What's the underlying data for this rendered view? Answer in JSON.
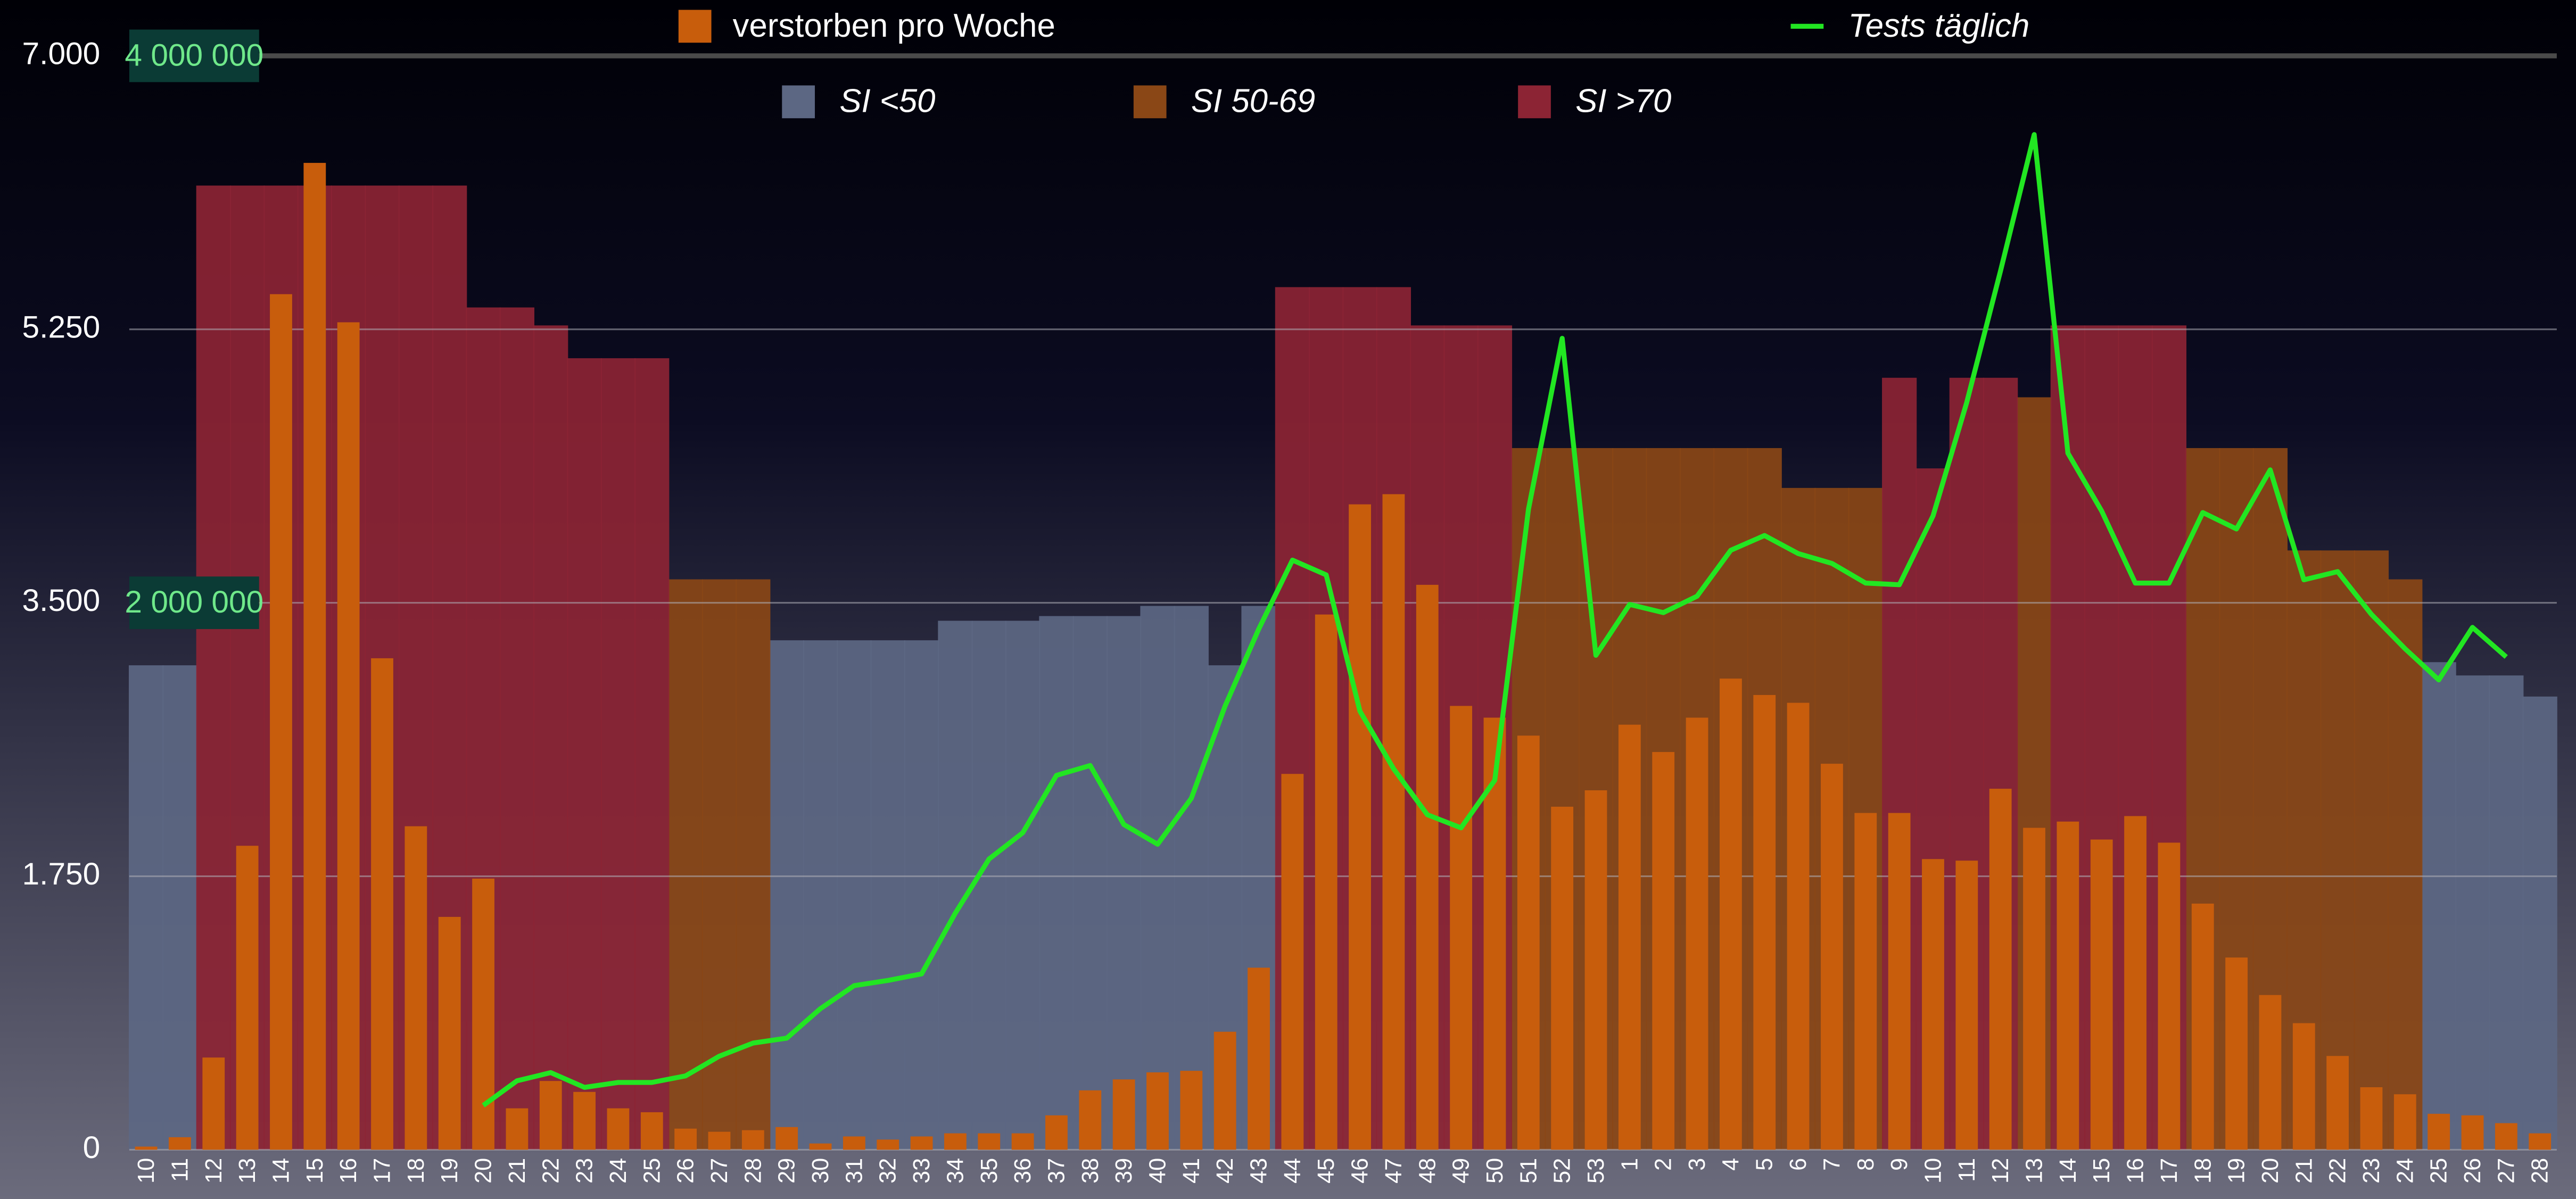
{
  "chart_data": {
    "type": "bar",
    "categories": [
      "10",
      "11",
      "12",
      "13",
      "14",
      "15",
      "16",
      "17",
      "18",
      "19",
      "20",
      "21",
      "22",
      "23",
      "24",
      "25",
      "26",
      "27",
      "28",
      "29",
      "30",
      "31",
      "32",
      "33",
      "34",
      "35",
      "36",
      "37",
      "38",
      "39",
      "40",
      "41",
      "42",
      "43",
      "44",
      "45",
      "46",
      "47",
      "48",
      "49",
      "50",
      "51",
      "52",
      "53",
      "1",
      "2",
      "3",
      "4",
      "5",
      "6",
      "7",
      "8",
      "9",
      "10",
      "11",
      "12",
      "13",
      "14",
      "15",
      "16",
      "17",
      "18",
      "19",
      "20",
      "21",
      "22",
      "23",
      "24",
      "25",
      "26",
      "27",
      "28"
    ],
    "ylim": [
      0,
      7000
    ],
    "yticks": [
      0,
      {
        "value": 1750,
        "label": "1.750"
      },
      {
        "value": 3500,
        "label": "3.500"
      },
      {
        "value": 5250,
        "label": "5.250"
      },
      {
        "value": 7000,
        "label": "7.000"
      }
    ],
    "y2lim": [
      0,
      4000000
    ],
    "y2ticks": [
      {
        "value": 2000000,
        "label": "2 000 000"
      },
      {
        "value": 4000000,
        "label": "4 000 000"
      }
    ],
    "grid": true,
    "legend": "top",
    "series": [
      {
        "name": "verstorben pro Woche",
        "type": "bar",
        "color": "#c85d0c",
        "values": [
          20,
          80,
          590,
          1945,
          5475,
          6315,
          5295,
          3145,
          2070,
          1490,
          1735,
          265,
          440,
          370,
          265,
          240,
          135,
          115,
          125,
          145,
          40,
          85,
          65,
          85,
          105,
          105,
          105,
          220,
          380,
          450,
          495,
          505,
          755,
          1165,
          2405,
          3425,
          4130,
          4195,
          3615,
          2840,
          2765,
          2650,
          2195,
          2300,
          2720,
          2545,
          2765,
          3015,
          2910,
          2860,
          2470,
          2155,
          2155,
          1860,
          1850,
          2310,
          2060,
          2100,
          1985,
          2135,
          1965,
          1575,
          1230,
          990,
          810,
          600,
          400,
          355,
          230,
          220,
          170,
          105
        ]
      },
      {
        "name": "Tests täglich",
        "type": "line",
        "axis": "y2",
        "color": "#22e622",
        "values": [
          null,
          null,
          null,
          null,
          null,
          null,
          null,
          null,
          null,
          null,
          162000,
          252000,
          282000,
          228000,
          246000,
          246000,
          270000,
          342000,
          390000,
          408000,
          516000,
          600000,
          619000,
          643000,
          865000,
          1063000,
          1159000,
          1369000,
          1405000,
          1189000,
          1117000,
          1285000,
          1622000,
          1904000,
          2156000,
          2102000,
          1604000,
          1393000,
          1225000,
          1177000,
          1351000,
          2342000,
          2967000,
          1808000,
          1994000,
          1964000,
          2024000,
          2192000,
          2246000,
          2180000,
          2144000,
          2072000,
          2066000,
          2318000,
          2733000,
          3213000,
          3712000,
          2547000,
          2336000,
          2072000,
          2072000,
          2330000,
          2270000,
          2486000,
          2084000,
          2114000,
          1958000,
          1832000,
          1718000,
          1910000,
          1802000,
          null
        ]
      },
      {
        "name": "SI <50",
        "type": "area",
        "color": "#5c6783",
        "values": [
          3100,
          3100,
          null,
          null,
          null,
          null,
          null,
          null,
          null,
          null,
          null,
          null,
          null,
          null,
          null,
          null,
          null,
          null,
          null,
          3260,
          3260,
          3260,
          3260,
          3260,
          3385,
          3385,
          3385,
          3415,
          3415,
          3415,
          3480,
          3480,
          3100,
          3480,
          null,
          null,
          null,
          null,
          null,
          null,
          null,
          null,
          null,
          null,
          null,
          null,
          null,
          null,
          null,
          null,
          null,
          null,
          null,
          null,
          null,
          null,
          null,
          null,
          null,
          null,
          null,
          null,
          null,
          null,
          null,
          null,
          null,
          null,
          3120,
          3035,
          3035,
          2900
        ]
      },
      {
        "name": "SI 50-69",
        "type": "area",
        "color": "#8a4716",
        "values": [
          null,
          null,
          null,
          null,
          null,
          null,
          null,
          null,
          null,
          null,
          null,
          null,
          null,
          null,
          null,
          null,
          3650,
          3650,
          3650,
          null,
          null,
          null,
          null,
          null,
          null,
          null,
          null,
          null,
          null,
          null,
          null,
          null,
          null,
          null,
          null,
          null,
          null,
          null,
          null,
          null,
          null,
          4490,
          4490,
          4490,
          4490,
          4490,
          4490,
          4490,
          4490,
          4235,
          4235,
          4235,
          null,
          null,
          null,
          null,
          4815,
          null,
          null,
          null,
          null,
          4490,
          4490,
          4490,
          3835,
          3835,
          3835,
          3650,
          null,
          null,
          null,
          null
        ]
      },
      {
        "name": "SI >70",
        "type": "area",
        "color": "#8c2434",
        "values": [
          null,
          null,
          6170,
          6170,
          6170,
          6170,
          6170,
          6170,
          6170,
          6170,
          5390,
          5390,
          5275,
          5065,
          5065,
          5065,
          null,
          null,
          null,
          null,
          null,
          null,
          null,
          null,
          null,
          null,
          null,
          null,
          null,
          null,
          null,
          null,
          null,
          null,
          5520,
          5520,
          5520,
          5520,
          5275,
          5275,
          5275,
          null,
          null,
          null,
          null,
          null,
          null,
          null,
          null,
          null,
          null,
          null,
          4940,
          4360,
          4940,
          4940,
          null,
          5275,
          5275,
          5275,
          5275,
          null,
          null,
          null,
          null,
          null,
          null,
          null,
          null,
          null,
          null,
          null
        ]
      }
    ]
  }
}
